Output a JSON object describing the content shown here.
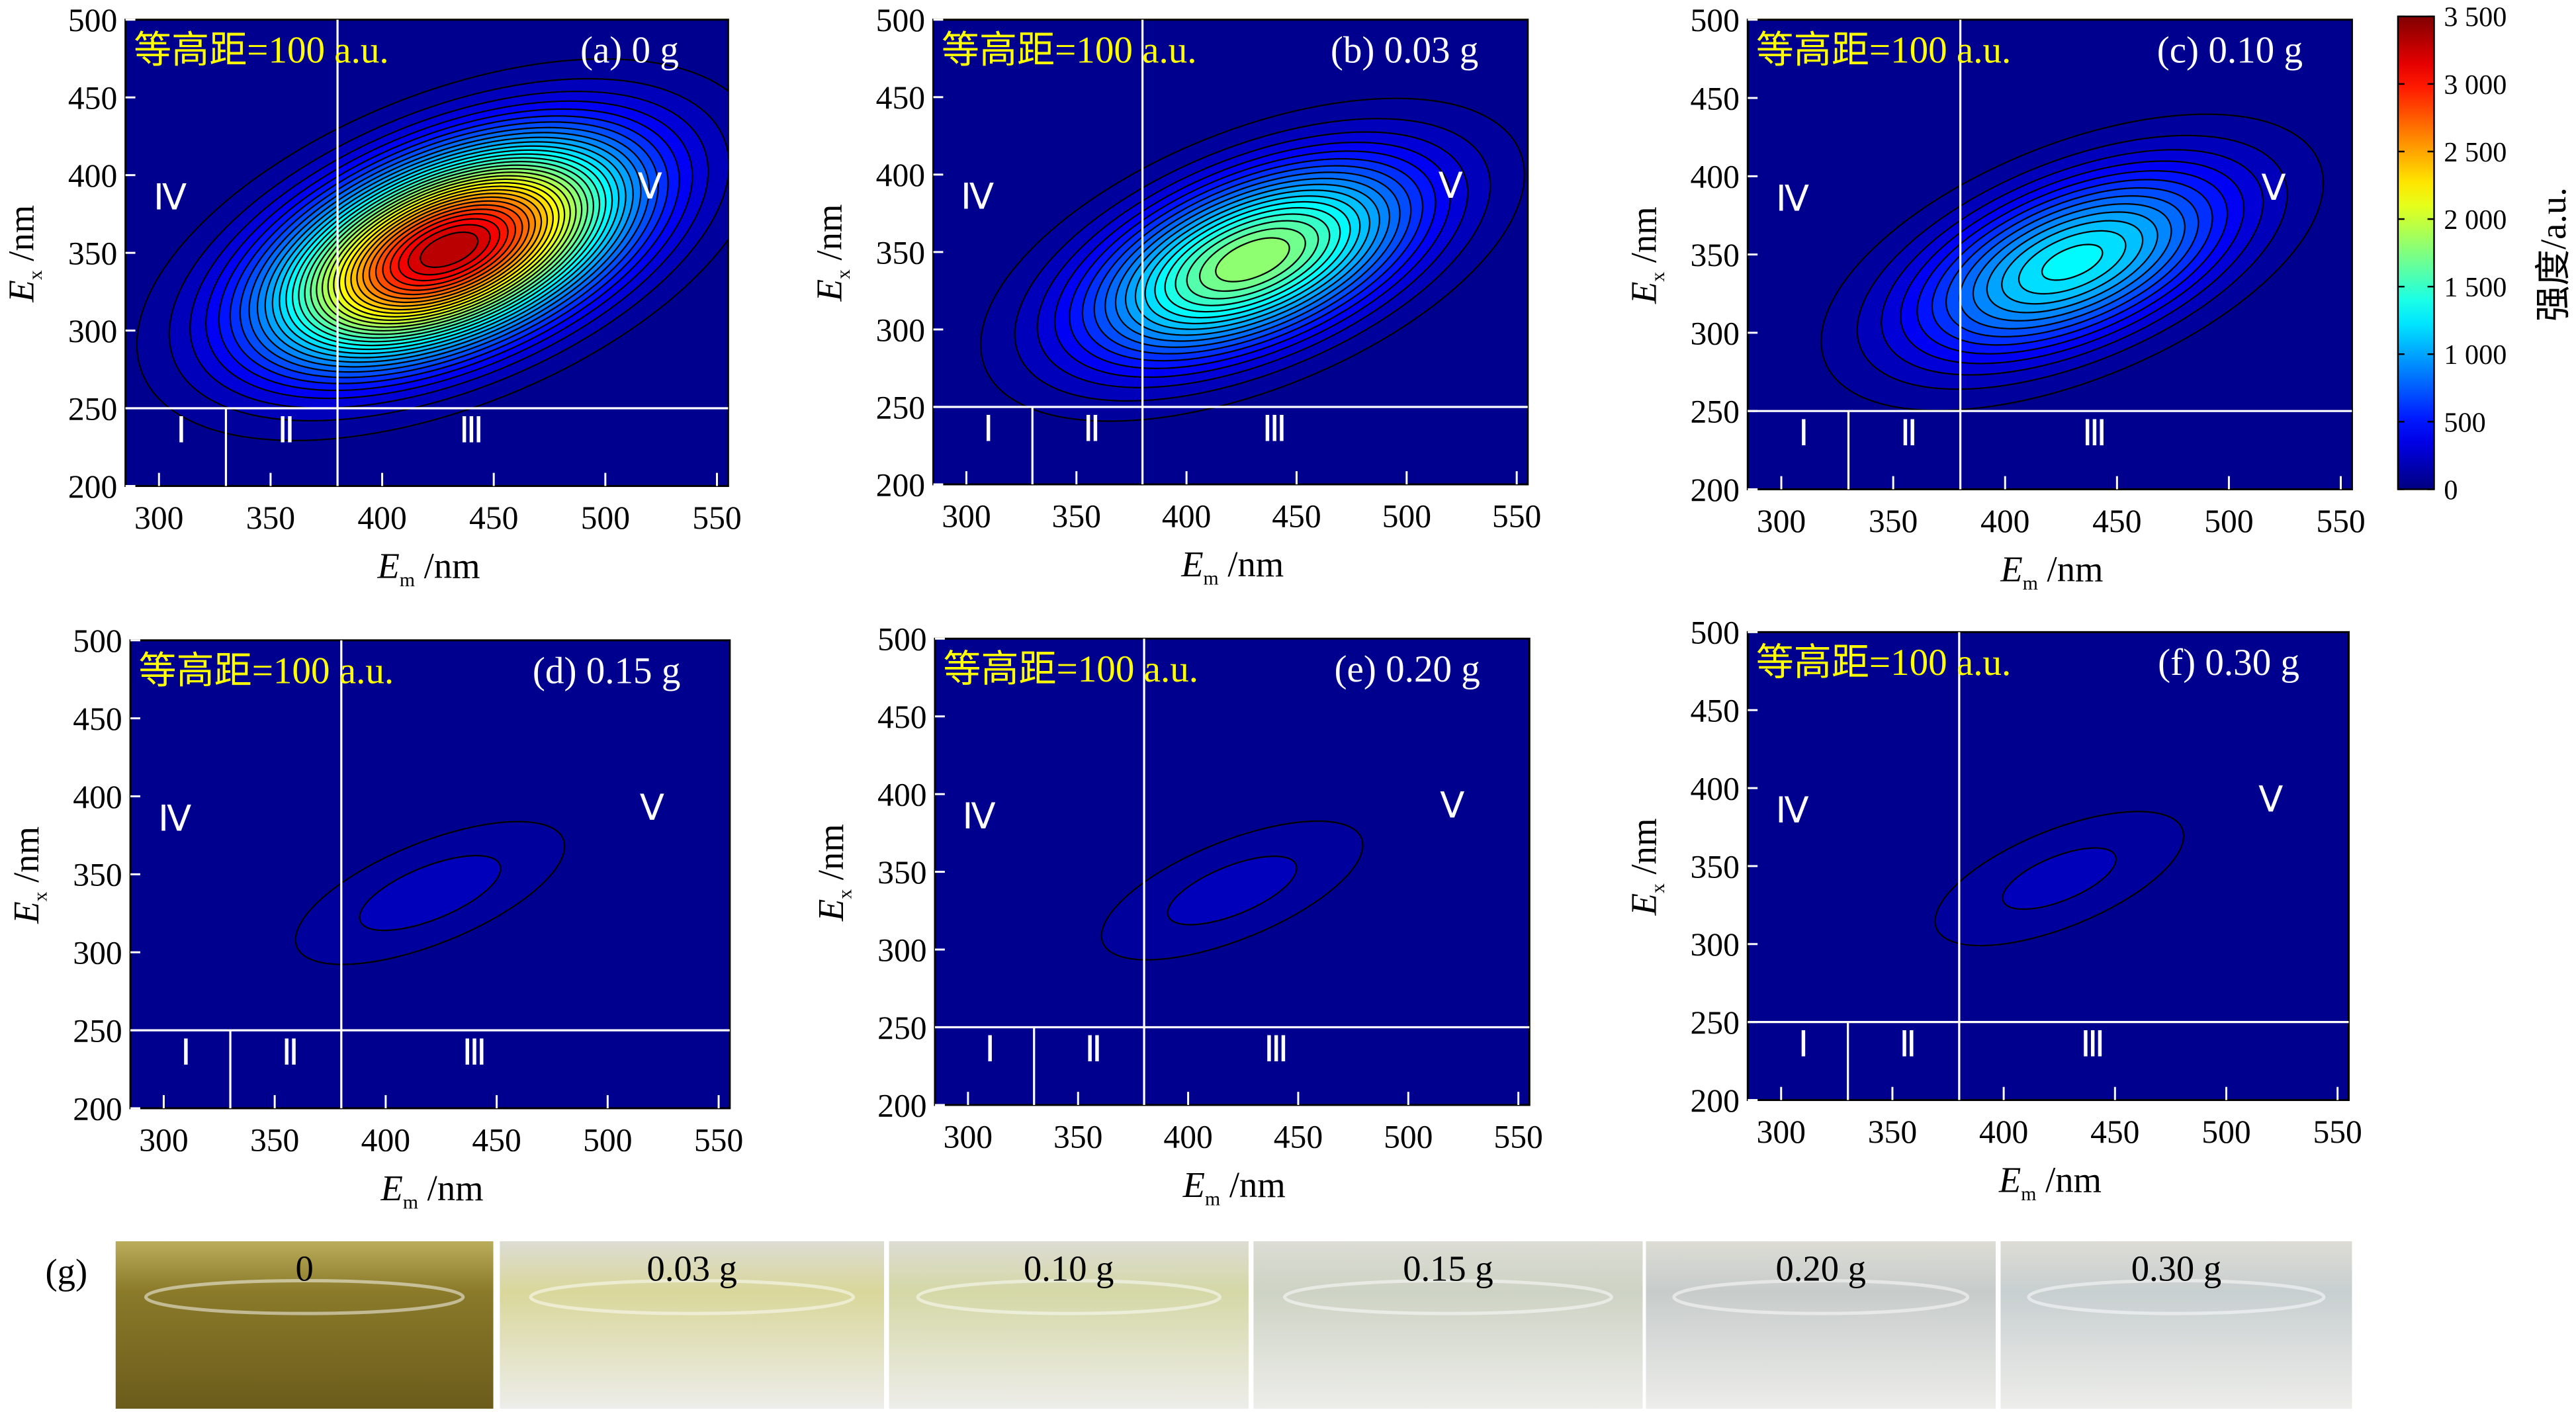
{
  "chart_data": {
    "type": "heatmap",
    "subtype": "contour (EEM fluorescence spectra)",
    "xlabel": {
      "symbol": "E",
      "sub": "m",
      "unit": " /nm"
    },
    "ylabel": {
      "symbol": "E",
      "sub": "x",
      "unit": " /nm"
    },
    "xlim": [
      285,
      555
    ],
    "ylim": [
      200,
      500
    ],
    "xticks": [
      "300",
      "350",
      "400",
      "450",
      "500",
      "550"
    ],
    "yticks": [
      "200",
      "250",
      "300",
      "350",
      "400",
      "450",
      "500"
    ],
    "contour_label": "等高距=100 a.u.",
    "contour_interval": 100,
    "region_boundaries": {
      "em": [
        330,
        380
      ],
      "ex": 250
    },
    "region_labels": [
      "Ⅰ",
      "Ⅱ",
      "Ⅲ",
      "Ⅳ",
      "Ⅴ"
    ],
    "colorbar": {
      "label": "强度/a.u.",
      "range": [
        0,
        3500
      ],
      "ticks": [
        "0",
        "500",
        "1 000",
        "1 500",
        "2 000",
        "2 500",
        "3 000",
        "3 500"
      ],
      "tick_values": [
        0,
        500,
        1000,
        1500,
        2000,
        2500,
        3000,
        3500
      ],
      "colormap": "jet"
    },
    "panels": [
      {
        "id": "a",
        "title": "(a) 0 g",
        "peak_em": 430,
        "peak_ex": 352,
        "peak_intensity": 3400
      },
      {
        "id": "b",
        "title": "(b) 0.03 g",
        "peak_em": 430,
        "peak_ex": 345,
        "peak_intensity": 1900
      },
      {
        "id": "c",
        "title": "(c) 0.10 g",
        "peak_em": 430,
        "peak_ex": 345,
        "peak_intensity": 1350
      },
      {
        "id": "d",
        "title": "(d) 0.15 g",
        "peak_em": 420,
        "peak_ex": 338,
        "peak_intensity": 260
      },
      {
        "id": "e",
        "title": "(e) 0.20 g",
        "peak_em": 420,
        "peak_ex": 338,
        "peak_intensity": 250
      },
      {
        "id": "f",
        "title": "(f) 0.30 g",
        "peak_em": 425,
        "peak_ex": 342,
        "peak_intensity": 240
      }
    ]
  },
  "photos": {
    "label": "(g)",
    "items": [
      {
        "label": "0",
        "color": "#8a7a2a"
      },
      {
        "label": "0.03 g",
        "color": "#d9d79a"
      },
      {
        "label": "0.10 g",
        "color": "#d5d8a6"
      },
      {
        "label": "0.15 g",
        "color": "#cdd3c4"
      },
      {
        "label": "0.20 g",
        "color": "#c7cccb"
      },
      {
        "label": "0.30 g",
        "color": "#c8cfd0"
      }
    ]
  }
}
